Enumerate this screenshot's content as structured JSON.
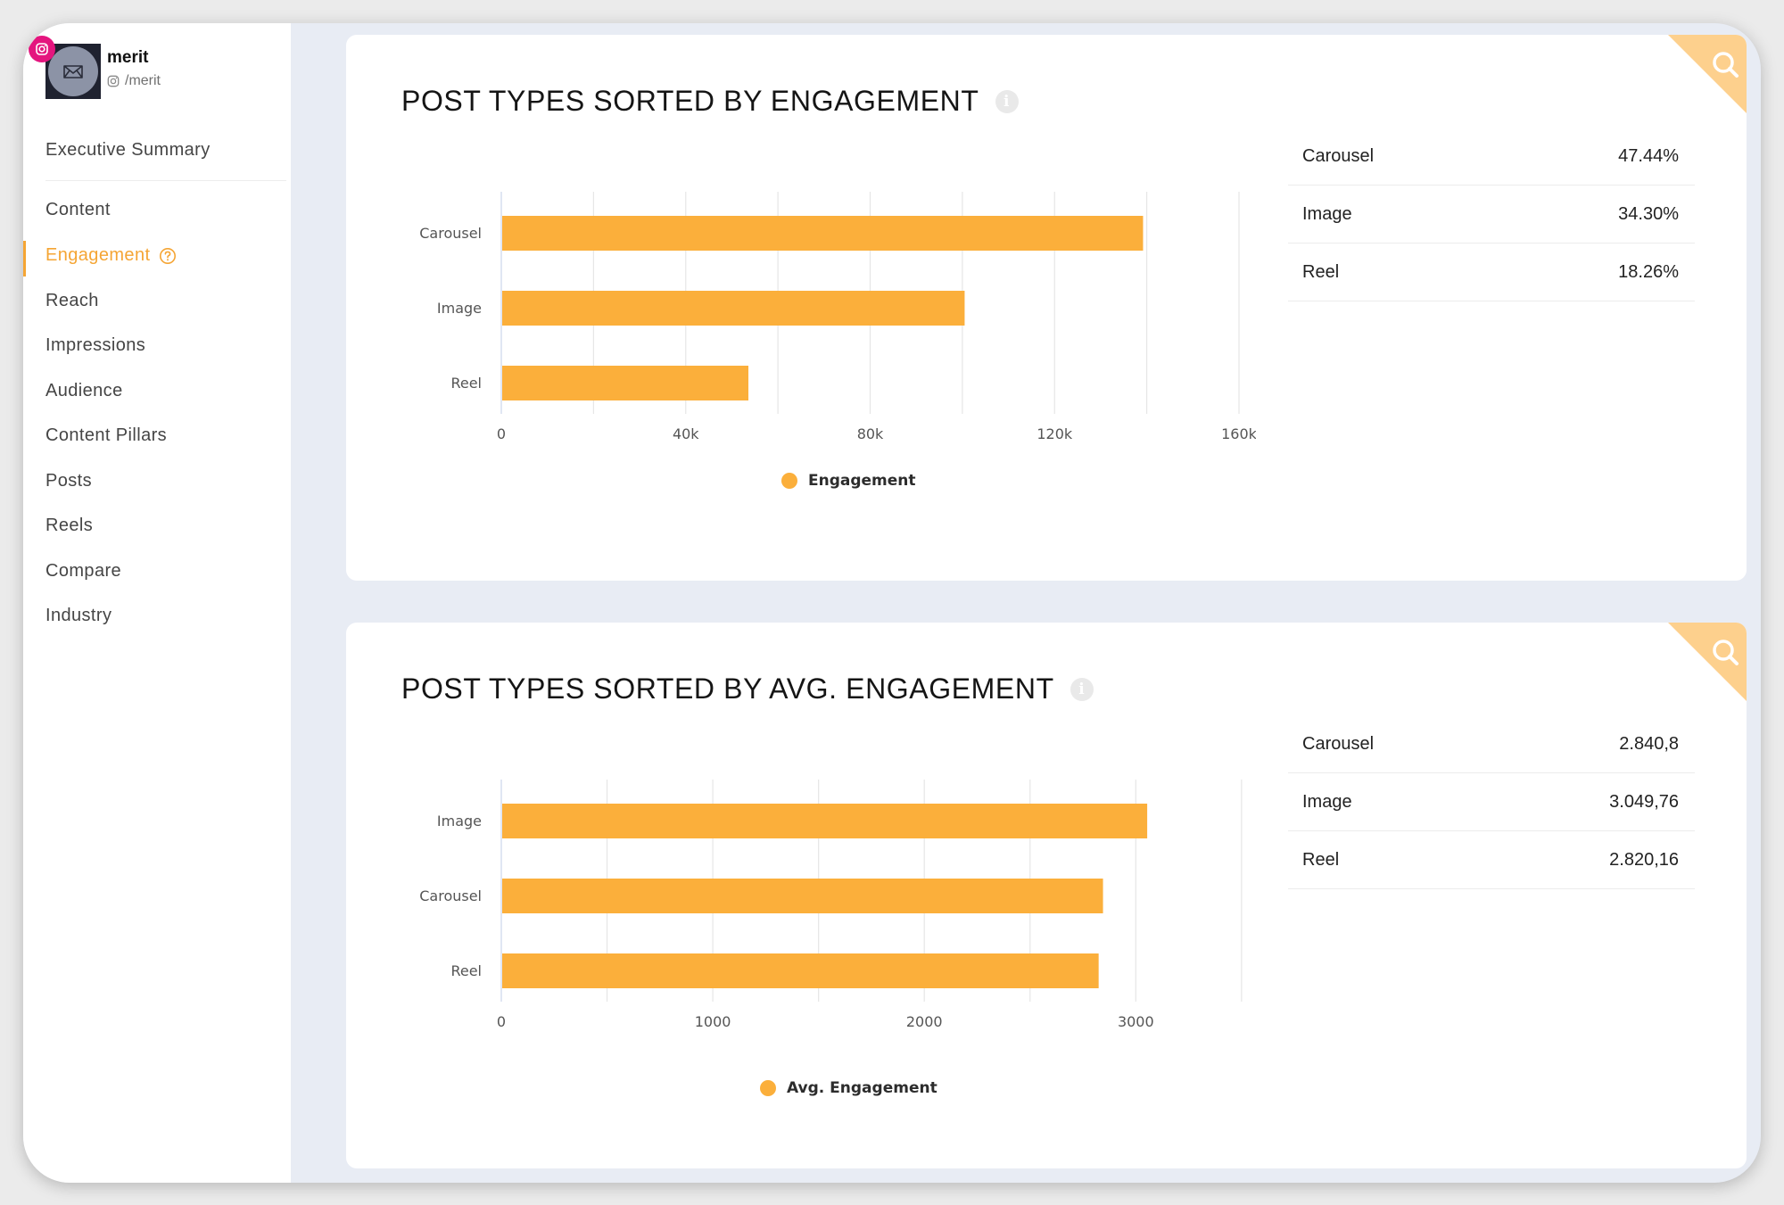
{
  "profile": {
    "name": "merit",
    "handle": "/merit",
    "avatar_icon": "merit-logo-icon",
    "network_icon": "instagram-icon"
  },
  "sidebar": {
    "items": [
      {
        "label": "Executive Summary",
        "active": false
      },
      {
        "label": "Content",
        "active": false
      },
      {
        "label": "Engagement",
        "active": true,
        "icon": "help-circle-icon"
      },
      {
        "label": "Reach",
        "active": false
      },
      {
        "label": "Impressions",
        "active": false
      },
      {
        "label": "Audience",
        "active": false
      },
      {
        "label": "Content Pillars",
        "active": false
      },
      {
        "label": "Posts",
        "active": false
      },
      {
        "label": "Reels",
        "active": false
      },
      {
        "label": "Compare",
        "active": false
      },
      {
        "label": "Industry",
        "active": false
      }
    ]
  },
  "colors": {
    "accent": "#f5a534",
    "bar": "#fbaf3b",
    "corner": "#fdd08d",
    "background": "#e8ecf4",
    "instagram": "#e4157e"
  },
  "cards": [
    {
      "title": "POST TYPES SORTED BY ENGAGEMENT",
      "icons": [
        "info-icon",
        "search-icon"
      ],
      "legend": "Engagement",
      "stats": [
        {
          "label": "Carousel",
          "value": "47.44%"
        },
        {
          "label": "Image",
          "value": "34.30%"
        },
        {
          "label": "Reel",
          "value": "18.26%"
        }
      ]
    },
    {
      "title": "POST TYPES SORTED BY AVG. ENGAGEMENT",
      "icons": [
        "info-icon",
        "search-icon"
      ],
      "legend": "Avg. Engagement",
      "stats": [
        {
          "label": "Carousel",
          "value": "2.840,8"
        },
        {
          "label": "Image",
          "value": "3.049,76"
        },
        {
          "label": "Reel",
          "value": "2.820,16"
        }
      ]
    }
  ],
  "chart_data": [
    {
      "type": "bar",
      "orientation": "horizontal",
      "categories": [
        "Carousel",
        "Image",
        "Reel"
      ],
      "series": [
        {
          "name": "Engagement",
          "values": [
            139000,
            100300,
            53400
          ]
        }
      ],
      "xlim": [
        0,
        160000
      ],
      "xticks": [
        0,
        40000,
        80000,
        120000,
        160000
      ],
      "xtick_labels": [
        "0",
        "40k",
        "80k",
        "120k",
        "160k"
      ],
      "grid": true,
      "legend": "bottom-center"
    },
    {
      "type": "bar",
      "orientation": "horizontal",
      "categories": [
        "Image",
        "Carousel",
        "Reel"
      ],
      "series": [
        {
          "name": "Avg. Engagement",
          "values": [
            3049.76,
            2840.8,
            2820.16
          ]
        }
      ],
      "xlim": [
        0,
        3500
      ],
      "xticks": [
        0,
        1000,
        2000,
        3000
      ],
      "xtick_labels": [
        "0",
        "1000",
        "2000",
        "3000"
      ],
      "grid": true,
      "legend": "bottom-center"
    }
  ]
}
